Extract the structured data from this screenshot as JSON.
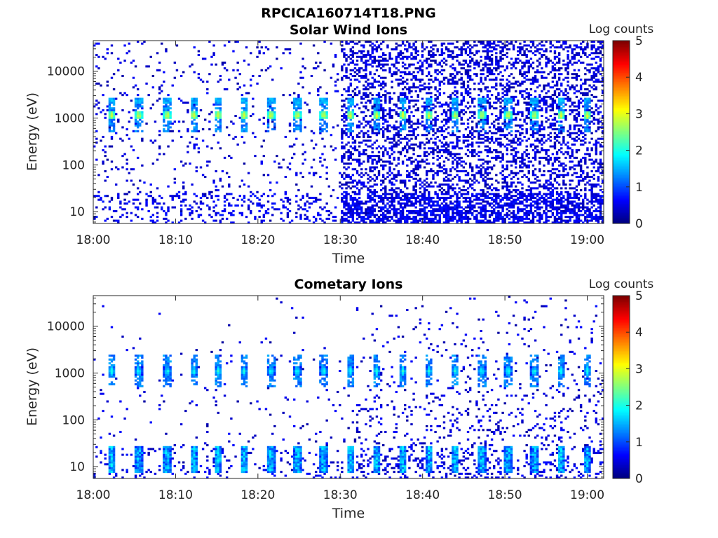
{
  "figure_title": "RPCICA160714T18.PNG",
  "chart_data": [
    {
      "type": "heatmap",
      "title": "Solar Wind Ions",
      "xlabel": "Time",
      "ylabel": "Energy (eV)",
      "x_ticks": [
        "18:00",
        "18:10",
        "18:20",
        "18:30",
        "18:40",
        "18:50",
        "19:00"
      ],
      "x_range": [
        "18:00",
        "19:02"
      ],
      "y_scale": "log",
      "y_ticks": [
        "10",
        "100",
        "1000",
        "10000"
      ],
      "y_range": [
        5.6,
        45000
      ],
      "colorbar": {
        "label": "Log counts",
        "ticks": [
          "0",
          "1",
          "2",
          "3",
          "4",
          "5"
        ],
        "range": [
          0,
          5
        ],
        "colormap": "jet"
      },
      "noise": {
        "sparse_density": 0.06,
        "dense_density": 0.35,
        "transition_minute": 30
      },
      "bursts": {
        "minutes": [
          2.2,
          5.5,
          9.0,
          12.2,
          15.2,
          18.3,
          21.6,
          24.8,
          28.0,
          31.2,
          34.4,
          37.6,
          40.8,
          44.0,
          47.2,
          50.4,
          53.6,
          56.8,
          60.0
        ],
        "energy_peak_ev": 1150,
        "peak_log_counts": 2.9
      }
    },
    {
      "type": "heatmap",
      "title": "Cometary Ions",
      "xlabel": "Time",
      "ylabel": "Energy (eV)",
      "x_ticks": [
        "18:00",
        "18:10",
        "18:20",
        "18:30",
        "18:40",
        "18:50",
        "19:00"
      ],
      "x_range": [
        "18:00",
        "19:02"
      ],
      "y_scale": "log",
      "y_ticks": [
        "10",
        "100",
        "1000",
        "10000"
      ],
      "y_range": [
        5.6,
        45000
      ],
      "colorbar": {
        "label": "Log counts",
        "ticks": [
          "0",
          "1",
          "2",
          "3",
          "4",
          "5"
        ],
        "range": [
          0,
          5
        ],
        "colormap": "jet"
      },
      "noise": {
        "sparse_density": 0.02,
        "dense_density": 0.08,
        "transition_minute": 32
      },
      "bursts": {
        "minutes": [
          2.2,
          5.5,
          9.0,
          12.2,
          15.2,
          18.3,
          21.6,
          24.8,
          28.0,
          31.2,
          34.4,
          37.6,
          40.8,
          44.0,
          47.2,
          50.4,
          53.6,
          56.8,
          60.0
        ],
        "energy_peak_ev": 1100,
        "low_energy_band_ev": [
          6,
          25
        ],
        "peak_log_counts": 2.0
      }
    }
  ]
}
